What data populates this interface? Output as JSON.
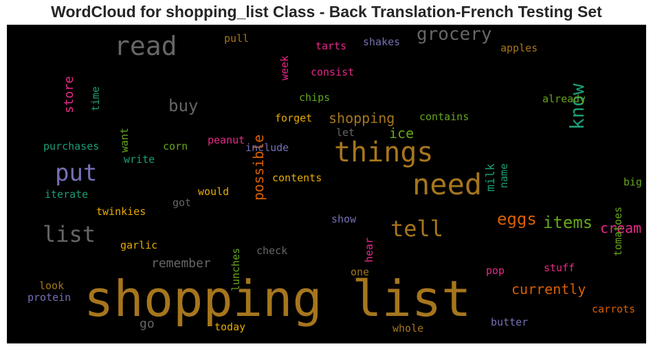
{
  "title": "WordCloud for shopping_list Class - Back Translation-French Testing Set",
  "words": {
    "shopping_list": "shopping list",
    "things": "things",
    "need": "need",
    "read": "read",
    "put": "put",
    "list": "list",
    "tell": "tell",
    "grocery": "grocery",
    "know": "know",
    "items": "items",
    "eggs": "eggs",
    "cream": "cream",
    "buy": "buy",
    "currently": "currently",
    "shopping": "shopping",
    "remember": "remember",
    "possible": "possible",
    "store": "store",
    "milk": "milk",
    "ice": "ice",
    "time": "time",
    "want": "want",
    "purchases": "purchases",
    "write": "write",
    "corn": "corn",
    "peanut": "peanut",
    "include": "include",
    "contents": "contents",
    "iterate": "iterate",
    "would": "would",
    "got": "got",
    "twinkies": "twinkies",
    "lunches": "lunches",
    "show": "show",
    "hear": "hear",
    "garlic": "garlic",
    "check": "check",
    "pull": "pull",
    "week": "week",
    "tarts": "tarts",
    "shakes": "shakes",
    "apples": "apples",
    "consist": "consist",
    "chips": "chips",
    "already": "already",
    "forget": "forget",
    "contains": "contains",
    "let": "let",
    "name": "name",
    "tomatoes": "tomatoes",
    "big": "big",
    "look": "look",
    "protein": "protein",
    "one": "one",
    "pop": "pop",
    "stuff": "stuff",
    "go": "go",
    "today": "today",
    "whole": "whole",
    "butter": "butter",
    "carrots": "carrots"
  },
  "colors": {
    "background": "#000000",
    "title": "#262626",
    "bronze": "#a6761d",
    "gray": "#666666",
    "orange": "#d95f02",
    "green": "#66a61e",
    "teal": "#1b9e77",
    "purple": "#7570b3",
    "magenta": "#e7298a",
    "gold": "#e6ab02"
  }
}
